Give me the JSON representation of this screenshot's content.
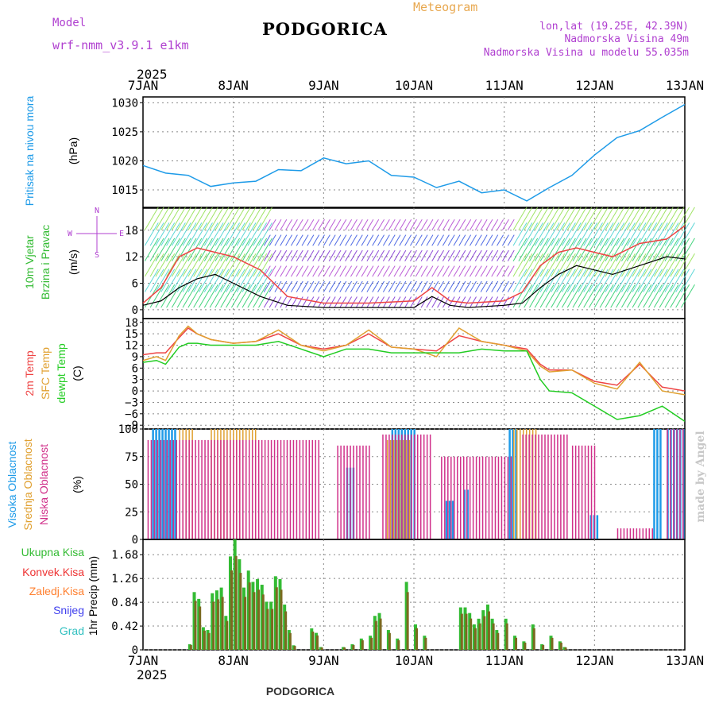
{
  "header": {
    "model_label": "Model",
    "model_name": "wrf-nmm_v3.9.1  e1km",
    "title": "PODGORICA",
    "product": "Meteogram",
    "lonlat": "lon,lat (19.25E, 42.39N)",
    "elevation": "Nadmorska Visina 49m",
    "model_elevation": "Nadmorska Visina u modelu 55.035m",
    "footer_title": "PODGORICA",
    "watermark": "made by Angel"
  },
  "time_axis": {
    "year": "2025",
    "labels": [
      "7JAN",
      "8JAN",
      "9JAN",
      "10JAN",
      "11JAN",
      "12JAN",
      "13JAN"
    ]
  },
  "colors": {
    "pressure": "#1e9be8",
    "wind_label": "#33bb33",
    "dir_label": "#b040d0",
    "temp2m": "#ee4444",
    "sfc_temp": "#e0a030",
    "dewpt": "#22cc22",
    "high_cloud": "#1e9be8",
    "mid_cloud": "#e0a030",
    "low_cloud": "#d0308a",
    "total_precip": "#33bb33",
    "conv_precip": "#ee3333",
    "frz_precip": "#ff8030",
    "snow": "#4040ee",
    "graupel": "#30c0c0",
    "precip_bar": "#7a6a20"
  },
  "chart_data": [
    {
      "type": "line",
      "id": "pressure",
      "ylabel": [
        "Pritisak na nivou mora",
        "(hPa)"
      ],
      "ylim": [
        1012,
        1031
      ],
      "yticks": [
        1015,
        1020,
        1025,
        1030
      ],
      "x_days": [
        0,
        0.25,
        0.5,
        0.75,
        1.0,
        1.25,
        1.5,
        1.75,
        2.0,
        2.25,
        2.5,
        2.75,
        3.0,
        3.25,
        3.5,
        3.75,
        4.0,
        4.25,
        4.5,
        4.75,
        5.0,
        5.25,
        5.5,
        5.75,
        6.0
      ],
      "series": [
        {
          "values": [
            1019.2,
            1017.9,
            1017.5,
            1015.6,
            1016.2,
            1016.5,
            1018.5,
            1018.3,
            1020.5,
            1019.5,
            1020.0,
            1017.5,
            1017.2,
            1015.4,
            1016.5,
            1014.5,
            1015.0,
            1013.1,
            1015.4,
            1017.5,
            1021.0,
            1024.0,
            1025.2,
            1027.5,
            1029.7
          ]
        }
      ]
    },
    {
      "type": "line",
      "id": "wind",
      "ylabel": [
        "10m Vjetar",
        "Brzina i Pravac",
        "(m/s)"
      ],
      "direction_key": [
        "N",
        "W",
        "E",
        "S"
      ],
      "ylim": [
        -2,
        23
      ],
      "yticks": [
        0,
        6,
        12,
        18
      ],
      "x_days": [
        0,
        0.2,
        0.4,
        0.6,
        0.8,
        1.0,
        1.3,
        1.6,
        2.0,
        2.5,
        3.0,
        3.2,
        3.4,
        3.6,
        4.0,
        4.2,
        4.4,
        4.6,
        4.8,
        5.0,
        5.2,
        5.5,
        5.8,
        6.0
      ],
      "series": [
        {
          "name": "speed",
          "values": [
            1,
            2,
            5,
            7,
            8,
            6,
            3,
            1,
            0.5,
            0.5,
            0.5,
            3,
            1,
            0.5,
            1,
            1.5,
            5,
            8,
            10,
            9,
            8,
            10,
            12,
            11.5
          ]
        },
        {
          "name": "gust",
          "values": [
            1.5,
            5,
            12,
            14,
            13,
            12,
            9,
            3,
            1.5,
            1.5,
            2,
            5,
            2,
            1.5,
            2,
            4,
            10,
            13,
            14,
            13,
            12,
            15,
            16,
            19
          ]
        }
      ]
    },
    {
      "type": "line",
      "id": "temperature",
      "ylabel": [
        "2m Temp",
        "SFC Temp",
        "dewpt Temp",
        "(C)"
      ],
      "ylim": [
        -10,
        19
      ],
      "yticks": [
        -9,
        -6,
        -3,
        0,
        3,
        6,
        9,
        12,
        15,
        18
      ],
      "x_days": [
        0,
        0.15,
        0.25,
        0.4,
        0.5,
        0.6,
        0.75,
        1.0,
        1.25,
        1.5,
        1.75,
        2.0,
        2.25,
        2.5,
        2.75,
        3.0,
        3.25,
        3.5,
        3.75,
        4.0,
        4.25,
        4.4,
        4.5,
        4.75,
        5.0,
        5.25,
        5.5,
        5.75,
        6.0
      ],
      "series": [
        {
          "name": "2m Temp",
          "values": [
            9.5,
            10,
            10,
            14,
            16.5,
            15,
            13.5,
            12.5,
            13,
            15,
            12,
            11,
            12,
            15,
            11.5,
            11,
            10.5,
            14.5,
            13,
            12,
            11,
            7,
            5.5,
            5.5,
            2.5,
            1.5,
            7,
            1,
            0
          ]
        },
        {
          "name": "SFC Temp",
          "values": [
            8,
            9,
            8,
            14.5,
            17,
            15,
            13.5,
            12.5,
            13,
            16,
            12,
            10.5,
            12,
            16,
            11.5,
            11,
            9,
            16.5,
            13,
            12,
            10.5,
            6.5,
            5,
            5.5,
            2,
            0.5,
            7.5,
            0,
            -1
          ]
        },
        {
          "name": "dewpt Temp",
          "values": [
            7.5,
            8,
            7,
            11.5,
            12.5,
            12.5,
            12,
            12,
            12,
            13,
            11,
            9,
            11,
            11,
            10,
            10,
            10,
            10,
            11,
            10.5,
            10.5,
            3,
            0,
            -0.5,
            -4,
            -7.5,
            -6.5,
            -4,
            -8
          ]
        }
      ]
    },
    {
      "type": "bar",
      "id": "clouds",
      "ylabel": [
        "Visoka Oblacnost",
        "Srednja Oblacnost",
        "Niska Oblacnost",
        "(%)"
      ],
      "ylim": [
        0,
        100
      ],
      "yticks": [
        0,
        25,
        50,
        75,
        100
      ],
      "series": [
        {
          "name": "Visoka Oblacnost",
          "ranges": [
            [
              0.1,
              0.35,
              100
            ],
            [
              2.25,
              2.35,
              65
            ],
            [
              2.75,
              3.0,
              100
            ],
            [
              3.35,
              3.45,
              35
            ],
            [
              3.55,
              3.6,
              45
            ],
            [
              4.05,
              4.15,
              100
            ],
            [
              4.95,
              5.05,
              22
            ],
            [
              5.65,
              5.75,
              100
            ],
            [
              5.8,
              6.0,
              100
            ]
          ]
        },
        {
          "name": "Srednja Oblacnost",
          "ranges": [
            [
              0.4,
              0.55,
              100
            ],
            [
              0.75,
              1.25,
              100
            ],
            [
              2.7,
              2.95,
              90
            ],
            [
              4.1,
              4.35,
              100
            ]
          ]
        },
        {
          "name": "Niska Oblacnost",
          "ranges": [
            [
              0.05,
              1.95,
              90
            ],
            [
              2.15,
              2.5,
              85
            ],
            [
              2.65,
              3.2,
              95
            ],
            [
              3.3,
              4.1,
              75
            ],
            [
              4.2,
              4.7,
              95
            ],
            [
              4.75,
              5.0,
              85
            ],
            [
              5.25,
              5.65,
              10
            ],
            [
              5.8,
              6.0,
              100
            ]
          ]
        }
      ]
    },
    {
      "type": "bar",
      "id": "precip",
      "ylabel": [
        "Ukupna Kisa",
        "Konvek.Kisa",
        "Zaledj.Kisa",
        "Snijeg",
        "Grad",
        "1hr Precip (mm)"
      ],
      "ylim": [
        0,
        1.95
      ],
      "yticks": [
        0,
        0.42,
        0.84,
        1.26,
        1.68
      ],
      "x_days": [
        0.5,
        0.55,
        0.6,
        0.65,
        0.7,
        0.75,
        0.8,
        0.85,
        0.9,
        0.95,
        1.0,
        1.05,
        1.1,
        1.15,
        1.2,
        1.25,
        1.3,
        1.35,
        1.4,
        1.45,
        1.5,
        1.55,
        1.6,
        1.65,
        1.85,
        1.9,
        1.95,
        2.2,
        2.3,
        2.4,
        2.5,
        2.55,
        2.6,
        2.7,
        2.8,
        2.9,
        3.0,
        3.1,
        3.5,
        3.55,
        3.6,
        3.65,
        3.7,
        3.75,
        3.8,
        3.85,
        3.9,
        4.0,
        4.1,
        4.2,
        4.3,
        4.4,
        4.5,
        4.6,
        4.65
      ],
      "values": [
        0.1,
        1.02,
        0.9,
        0.4,
        0.35,
        1.0,
        1.05,
        1.1,
        0.6,
        1.65,
        1.95,
        1.6,
        1.1,
        1.4,
        1.2,
        1.25,
        1.15,
        0.85,
        0.85,
        1.3,
        1.25,
        0.8,
        0.35,
        0.08,
        0.38,
        0.3,
        0.05,
        0.05,
        0.1,
        0.2,
        0.25,
        0.6,
        0.65,
        0.35,
        0.2,
        1.2,
        0.45,
        0.25,
        0.75,
        0.75,
        0.65,
        0.45,
        0.55,
        0.7,
        0.8,
        0.55,
        0.35,
        0.55,
        0.25,
        0.15,
        0.45,
        0.1,
        0.25,
        0.15,
        0.05
      ]
    }
  ]
}
